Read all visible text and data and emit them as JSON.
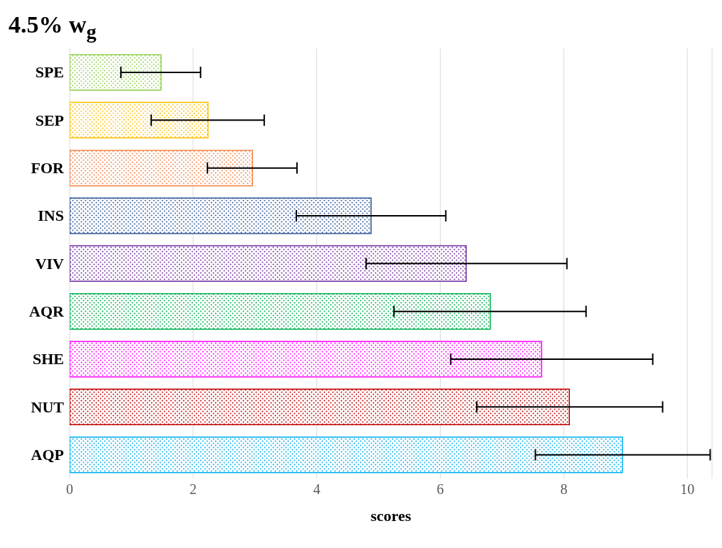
{
  "chart_data": {
    "type": "bar",
    "orientation": "horizontal",
    "title": "4.5% w$_{g}$",
    "xlabel": "scores",
    "categories": [
      "SPE",
      "SEP",
      "FOR",
      "INS",
      "VIV",
      "AQR",
      "SHE",
      "NUT",
      "AQP"
    ],
    "values": [
      1.48,
      2.24,
      2.96,
      4.88,
      6.42,
      6.81,
      7.64,
      8.09,
      8.95
    ],
    "colors": [
      "#92d050",
      "#ffc000",
      "#f4874b",
      "#2f5597",
      "#7030a0",
      "#00b050",
      "#ff00ff",
      "#c00000",
      "#00b0f0"
    ],
    "errors": [
      [
        0.83,
        2.12
      ],
      [
        1.32,
        3.15
      ],
      [
        2.23,
        3.68
      ],
      [
        3.67,
        6.09
      ],
      [
        4.8,
        8.05
      ],
      [
        5.25,
        8.36
      ],
      [
        6.17,
        9.44
      ],
      [
        6.59,
        9.6
      ],
      [
        7.54,
        10.37
      ]
    ],
    "xlim": [
      0,
      10.4
    ],
    "xticks": [
      0,
      2,
      4,
      6,
      8,
      10
    ],
    "grid": "x",
    "legend": false
  }
}
